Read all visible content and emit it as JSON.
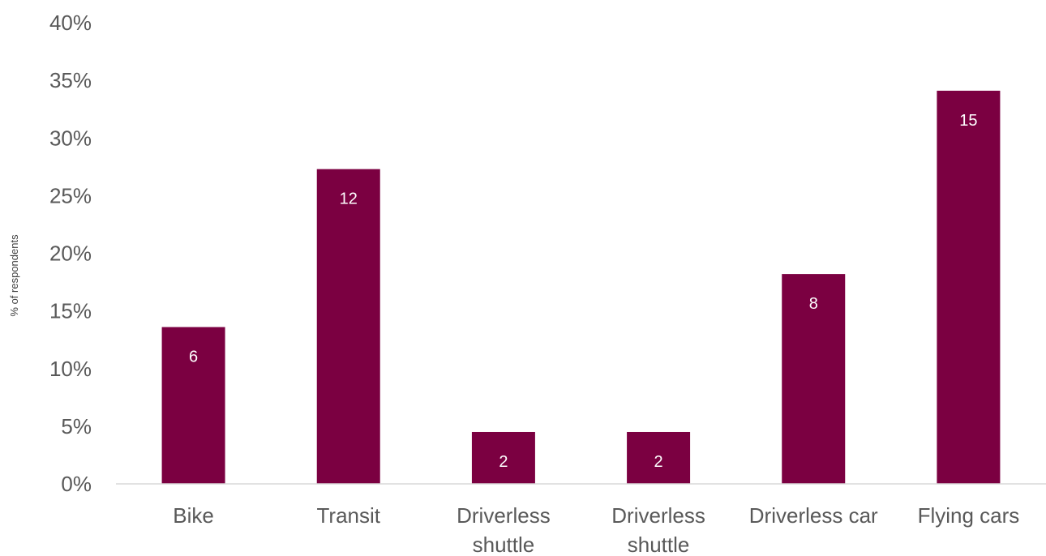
{
  "chart_data": {
    "type": "bar",
    "title": "",
    "xlabel": "",
    "ylabel": "% of respondents",
    "ylim": [
      0,
      40
    ],
    "y_ticks": [
      "0%",
      "5%",
      "10%",
      "15%",
      "20%",
      "25%",
      "30%",
      "35%",
      "40%"
    ],
    "y_tick_values": [
      0,
      5,
      10,
      15,
      20,
      25,
      30,
      35,
      40
    ],
    "grid": false,
    "legend": "none",
    "bar_color": "#7b0041",
    "categories": [
      [
        "Bike"
      ],
      [
        "Transit"
      ],
      [
        "Driverless",
        "shuttle"
      ],
      [
        "Driverless",
        "shuttle"
      ],
      [
        "Driverless car"
      ],
      [
        "Flying cars"
      ]
    ],
    "values": [
      13.6,
      27.3,
      4.5,
      4.5,
      18.2,
      34.1
    ],
    "data_labels": [
      "6",
      "12",
      "2",
      "2",
      "8",
      "15"
    ]
  }
}
